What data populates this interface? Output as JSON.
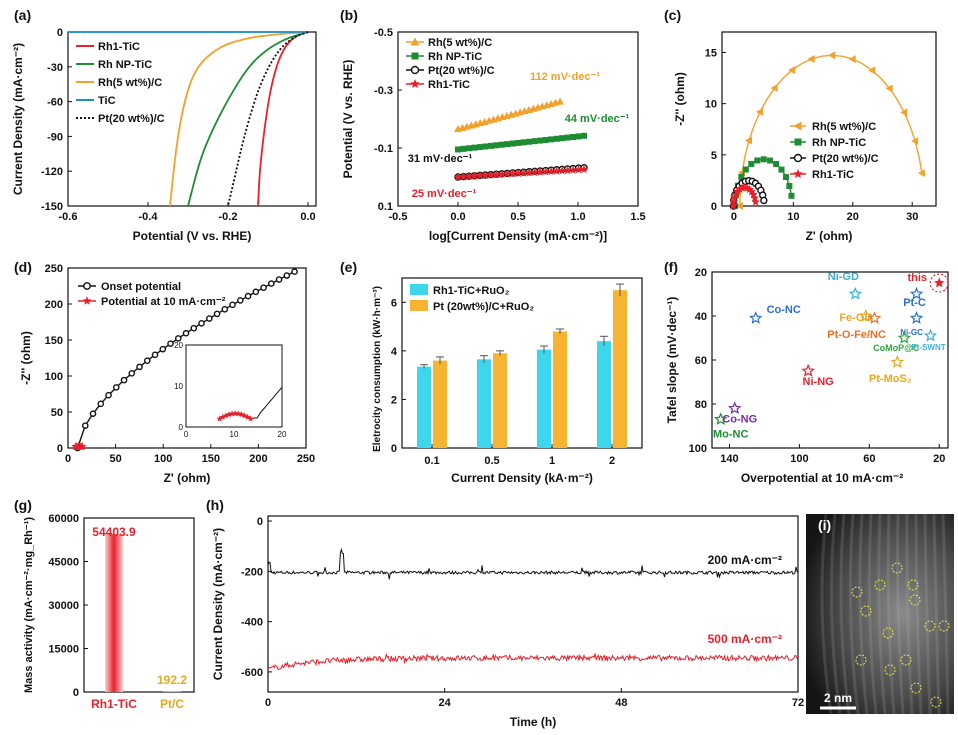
{
  "panels": {
    "a": {
      "letter": "(a)",
      "type": "line",
      "xlabel": "Potential (V vs. RHE)",
      "ylabel": "Current Density (mA·cm⁻²)",
      "xlim": [
        -0.6,
        0.02
      ],
      "ylim": [
        -150,
        0
      ],
      "xticks": [
        -0.6,
        -0.4,
        -0.2,
        0.0
      ],
      "xtick_labels": [
        "-0.6",
        "-0.4",
        "-0.2",
        "0.0"
      ],
      "yticks": [
        0,
        -30,
        -60,
        -90,
        -120,
        -150
      ],
      "ytick_labels": [
        "0",
        "-30",
        "-60",
        "-90",
        "-120",
        "-150"
      ],
      "series": [
        {
          "name": "Rh1-TiC",
          "color": "#e8202a",
          "dash": false,
          "x": [
            0.0,
            -0.02,
            -0.04,
            -0.06,
            -0.08,
            -0.1,
            -0.12,
            -0.125
          ],
          "y": [
            0,
            -2,
            -6,
            -14,
            -30,
            -60,
            -115,
            -150
          ]
        },
        {
          "name": "Rh NP-TiC",
          "color": "#1e8c32",
          "dash": false,
          "x": [
            0.0,
            -0.05,
            -0.1,
            -0.15,
            -0.2,
            -0.24,
            -0.27,
            -0.3
          ],
          "y": [
            0,
            -5,
            -14,
            -30,
            -58,
            -85,
            -110,
            -150
          ]
        },
        {
          "name": "Rh(5 wt%)/C",
          "color": "#f2a12c",
          "dash": false,
          "x": [
            0.0,
            -0.08,
            -0.15,
            -0.22,
            -0.28,
            -0.31,
            -0.33,
            -0.345
          ],
          "y": [
            0,
            -2,
            -5,
            -12,
            -30,
            -60,
            -100,
            -150
          ]
        },
        {
          "name": "TiC",
          "color": "#1a8fc9",
          "dash": false,
          "x": [
            -0.6,
            0.0
          ],
          "y": [
            0,
            0
          ]
        },
        {
          "name": "Pt(20 wt%)/C",
          "color": "#111111",
          "dash": true,
          "x": [
            0.0,
            -0.04,
            -0.08,
            -0.12,
            -0.15,
            -0.17,
            -0.185,
            -0.2
          ],
          "y": [
            0,
            -5,
            -18,
            -45,
            -78,
            -105,
            -128,
            -150
          ]
        }
      ]
    },
    "b": {
      "letter": "(b)",
      "type": "line",
      "xlabel": "log[Current Density (mA·cm⁻²)]",
      "ylabel": "Potential (V vs. RHE)",
      "xlim": [
        -0.5,
        1.5
      ],
      "ylim": [
        -0.5,
        0.1
      ],
      "xticks": [
        -0.5,
        0.0,
        0.5,
        1.0,
        1.5
      ],
      "xtick_labels": [
        "-0.5",
        "0.0",
        "0.5",
        "1.0",
        "1.5"
      ],
      "yticks": [
        -0.5,
        -0.3,
        -0.1,
        0.1
      ],
      "ytick_labels": [
        "-0.5",
        "-0.3",
        "-0.1",
        "0.1"
      ],
      "series": [
        {
          "name": "Rh(5 wt%)/C",
          "color": "#f2a12c",
          "marker": "triangle",
          "x": [
            0.0,
            0.85
          ],
          "y": [
            -0.165,
            -0.26
          ]
        },
        {
          "name": "Rh NP-TiC",
          "color": "#1e8c32",
          "marker": "square",
          "x": [
            0.0,
            1.05
          ],
          "y": [
            -0.095,
            -0.142
          ]
        },
        {
          "name": "Pt(20 wt%)/C",
          "color": "#111111",
          "marker": "circle",
          "x": [
            0.0,
            1.05
          ],
          "y": [
            0.0,
            -0.032
          ]
        },
        {
          "name": "Rh1-TiC",
          "color": "#e8202a",
          "marker": "star",
          "x": [
            0.0,
            1.05
          ],
          "y": [
            0.0,
            -0.026
          ]
        }
      ],
      "annotations": [
        {
          "text": "112 mV·dec⁻¹",
          "color": "#f2a12c"
        },
        {
          "text": "44 mV·dec⁻¹",
          "color": "#1e8c32"
        },
        {
          "text": "31 mV·dec⁻¹",
          "color": "#111111"
        },
        {
          "text": "25 mV·dec⁻¹",
          "color": "#e8202a"
        }
      ]
    },
    "c": {
      "letter": "(c)",
      "type": "scatter",
      "xlabel": "Z' (ohm)",
      "ylabel": "-Z'' (ohm)",
      "xlim": [
        -2,
        34
      ],
      "ylim": [
        0,
        17
      ],
      "xticks": [
        0,
        10,
        20,
        30
      ],
      "xtick_labels": [
        "0",
        "10",
        "20",
        "30"
      ],
      "yticks": [
        0,
        5,
        10,
        15
      ],
      "ytick_labels": [
        "0",
        "5",
        "10",
        "15"
      ],
      "series": [
        {
          "name": "Rh(5 wt%)/C",
          "color": "#f2a12c",
          "marker": "triangle-left",
          "center": 16.5,
          "radius": 15.5,
          "start": 1.0
        },
        {
          "name": "Rh NP-TiC",
          "color": "#1e8c32",
          "marker": "square",
          "center": 5.0,
          "radius": 4.8,
          "start": 0.2
        },
        {
          "name": "Pt(20 wt%)/C",
          "color": "#111111",
          "marker": "circle",
          "center": 2.5,
          "radius": 2.6,
          "start": -0.1
        },
        {
          "name": "Rh1-TiC",
          "color": "#e8202a",
          "marker": "star",
          "center": 1.8,
          "radius": 1.9,
          "start": -0.1
        }
      ]
    },
    "d": {
      "letter": "(d)",
      "type": "scatter",
      "xlabel": "Z' (ohm)",
      "ylabel": "-Z'' (ohm)",
      "xlim": [
        0,
        250
      ],
      "ylim": [
        0,
        250
      ],
      "xticks": [
        0,
        50,
        100,
        150,
        200,
        250
      ],
      "xtick_labels": [
        "0",
        "50",
        "100",
        "150",
        "200",
        "250"
      ],
      "yticks": [
        0,
        50,
        100,
        150,
        200,
        250
      ],
      "ytick_labels": [
        "0",
        "50",
        "100",
        "150",
        "200",
        "250"
      ],
      "series": [
        {
          "name": "Onset potential",
          "color": "#111111",
          "marker": "circle"
        },
        {
          "name": "Potential at 10 mA·cm⁻²",
          "color": "#e8202a",
          "marker": "star"
        }
      ],
      "inset": {
        "xticks": [
          "0",
          "10",
          "20"
        ],
        "yticks": [
          "0",
          "10",
          "20"
        ]
      }
    },
    "e": {
      "letter": "(e)",
      "type": "bar",
      "xlabel": "Current Density (kA·m⁻²)",
      "ylabel": "Eletrocity consumption (kW·h·m⁻³)",
      "categories": [
        "0.1",
        "0.5",
        "1",
        "2"
      ],
      "ylim": [
        0,
        7
      ],
      "yticks": [
        0,
        2,
        4,
        6
      ],
      "ytick_labels": [
        "0",
        "2",
        "4",
        "6"
      ],
      "series": [
        {
          "name": "Rh1-TiC+RuO₂",
          "color": "#3ed6ec",
          "values": [
            3.35,
            3.65,
            4.05,
            4.4
          ],
          "errors": [
            0.08,
            0.15,
            0.15,
            0.2
          ]
        },
        {
          "name": "Pt (20wt%)/C+RuO₂",
          "color": "#f5b532",
          "values": [
            3.6,
            3.9,
            4.8,
            6.5
          ],
          "errors": [
            0.15,
            0.1,
            0.1,
            0.25
          ]
        }
      ]
    },
    "f": {
      "letter": "(f)",
      "type": "scatter",
      "xlabel": "Overpotential at 10 mA·cm⁻²",
      "ylabel": "Tafel slope (mV·dec⁻¹)",
      "xlim": [
        150,
        15
      ],
      "ylim": [
        100,
        20
      ],
      "xticks": [
        140,
        100,
        60,
        20
      ],
      "xtick_labels": [
        "140",
        "100",
        "60",
        "20"
      ],
      "yticks": [
        20,
        40,
        60,
        80,
        100
      ],
      "ytick_labels": [
        "20",
        "40",
        "60",
        "80",
        "100"
      ],
      "points": [
        {
          "label": "this",
          "x": 20,
          "y": 25,
          "color": "#e8202a"
        },
        {
          "label": "Pt-C",
          "x": 33,
          "y": 30,
          "color": "#2a6fd1"
        },
        {
          "label": "Ni-GD",
          "x": 68,
          "y": 30,
          "color": "#3ab0d8"
        },
        {
          "label": "Co-NC",
          "x": 125,
          "y": 41,
          "color": "#2a6fd1"
        },
        {
          "label": "Fe-GD",
          "x": 62,
          "y": 40,
          "color": "#e8a81c"
        },
        {
          "label": "Pt-O-Fe/NC",
          "x": 57,
          "y": 41,
          "color": "#e8702a"
        },
        {
          "label": "Ni-GC",
          "x": 33,
          "y": 41,
          "color": "#2a6fd1"
        },
        {
          "label": "CoMoP@C",
          "x": 40,
          "y": 50,
          "color": "#2aa83a"
        },
        {
          "label": "Pt-SWNT",
          "x": 25,
          "y": 49,
          "color": "#3ab0d8"
        },
        {
          "label": "Pt-MoS₂",
          "x": 44,
          "y": 61,
          "color": "#e8a81c"
        },
        {
          "label": "Ni-NG",
          "x": 95,
          "y": 65,
          "color": "#e8202a"
        },
        {
          "label": "Co-NG",
          "x": 137,
          "y": 82,
          "color": "#7a2aa8"
        },
        {
          "label": "Mo-NC",
          "x": 145,
          "y": 87,
          "color": "#1e8c32"
        }
      ]
    },
    "g": {
      "letter": "(g)",
      "type": "bar",
      "ylabel": "Mass activity (mA·cm⁻²·mg_Rh⁻¹)",
      "categories": [
        "Rh1-TiC",
        "Pt/C"
      ],
      "values": [
        54403.9,
        192.2
      ],
      "value_labels": [
        "54403.9",
        "192.2"
      ],
      "colors": [
        "#e8202a",
        "#e8a81c"
      ],
      "ylim": [
        0,
        60000
      ],
      "yticks": [
        0,
        15000,
        30000,
        45000,
        60000
      ],
      "ytick_labels": [
        "0",
        "15000",
        "30000",
        "45000",
        "60000"
      ]
    },
    "h": {
      "letter": "(h)",
      "type": "line",
      "xlabel": "Time (h)",
      "ylabel": "Current Density (mA·cm⁻²)",
      "xlim": [
        0,
        72
      ],
      "ylim": [
        -680,
        20
      ],
      "xticks": [
        0,
        24,
        48,
        72
      ],
      "xtick_labels": [
        "0",
        "24",
        "48",
        "72"
      ],
      "yticks": [
        0,
        -200,
        -400,
        -600
      ],
      "ytick_labels": [
        "0",
        "-200",
        "-400",
        "-600"
      ],
      "series": [
        {
          "name": "200 mA·cm⁻²",
          "color": "#111111",
          "level": -205
        },
        {
          "name": "500 mA·cm⁻²",
          "color": "#e8202a",
          "level": -545
        }
      ]
    },
    "i": {
      "letter": "(i)",
      "scalebar": "2 nm"
    }
  }
}
